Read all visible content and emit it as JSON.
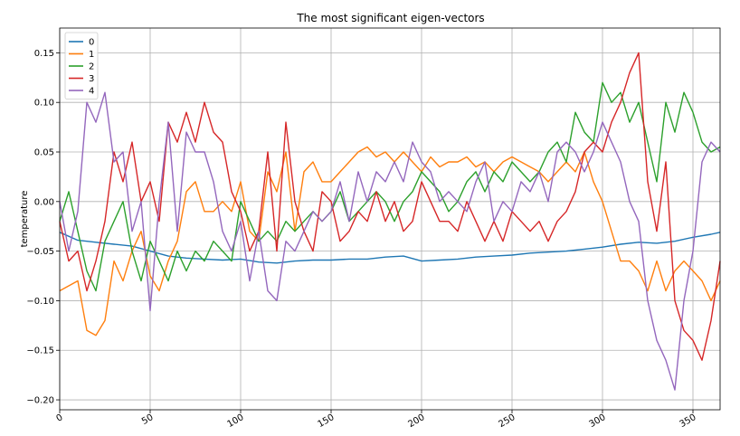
{
  "chart_data": {
    "type": "line",
    "title": "The most significant eigen-vectors",
    "xlabel": "",
    "ylabel": "temperature",
    "xlim": [
      0,
      365
    ],
    "ylim": [
      -0.21,
      0.175
    ],
    "xticks": [
      0,
      50,
      100,
      150,
      200,
      250,
      300,
      350
    ],
    "yticks": [
      -0.2,
      -0.15,
      -0.1,
      -0.05,
      0.0,
      0.05,
      0.1,
      0.15
    ],
    "xtick_labels": [
      "0",
      "50",
      "100",
      "150",
      "200",
      "250",
      "300",
      "350"
    ],
    "ytick_labels": [
      "−0.20",
      "−0.15",
      "−0.10",
      "−0.05",
      "0.00",
      "0.05",
      "0.10",
      "0.15"
    ],
    "grid": true,
    "legend_position": "top-left",
    "series": [
      {
        "name": "0",
        "color": "#1f77b4",
        "x": [
          0,
          10,
          20,
          30,
          40,
          50,
          60,
          70,
          80,
          90,
          100,
          110,
          120,
          130,
          140,
          150,
          160,
          170,
          180,
          190,
          200,
          210,
          220,
          230,
          240,
          250,
          260,
          270,
          280,
          290,
          300,
          310,
          320,
          330,
          340,
          350,
          360,
          365
        ],
        "y": [
          -0.031,
          -0.039,
          -0.041,
          -0.043,
          -0.045,
          -0.05,
          -0.055,
          -0.057,
          -0.058,
          -0.059,
          -0.058,
          -0.061,
          -0.062,
          -0.06,
          -0.059,
          -0.059,
          -0.058,
          -0.058,
          -0.056,
          -0.055,
          -0.06,
          -0.059,
          -0.058,
          -0.056,
          -0.055,
          -0.054,
          -0.052,
          -0.051,
          -0.05,
          -0.048,
          -0.046,
          -0.043,
          -0.041,
          -0.042,
          -0.04,
          -0.036,
          -0.033,
          -0.031
        ]
      },
      {
        "name": "1",
        "color": "#ff7f0e",
        "x": [
          0,
          5,
          10,
          15,
          20,
          25,
          30,
          35,
          40,
          45,
          50,
          55,
          60,
          65,
          70,
          75,
          80,
          85,
          90,
          95,
          100,
          105,
          110,
          115,
          120,
          125,
          130,
          135,
          140,
          145,
          150,
          155,
          160,
          165,
          170,
          175,
          180,
          185,
          190,
          195,
          200,
          205,
          210,
          215,
          220,
          225,
          230,
          235,
          240,
          245,
          250,
          255,
          260,
          265,
          270,
          275,
          280,
          285,
          290,
          295,
          300,
          305,
          310,
          315,
          320,
          325,
          330,
          335,
          340,
          345,
          350,
          355,
          360,
          365
        ],
        "y": [
          -0.09,
          -0.085,
          -0.08,
          -0.13,
          -0.135,
          -0.12,
          -0.06,
          -0.08,
          -0.05,
          -0.03,
          -0.075,
          -0.09,
          -0.06,
          -0.04,
          0.01,
          0.02,
          -0.01,
          -0.01,
          0.0,
          -0.01,
          0.02,
          -0.03,
          -0.04,
          0.03,
          0.01,
          0.05,
          -0.03,
          0.03,
          0.04,
          0.02,
          0.02,
          0.03,
          0.04,
          0.05,
          0.055,
          0.045,
          0.05,
          0.04,
          0.05,
          0.04,
          0.03,
          0.045,
          0.035,
          0.04,
          0.04,
          0.045,
          0.035,
          0.04,
          0.03,
          0.04,
          0.045,
          0.04,
          0.035,
          0.03,
          0.02,
          0.03,
          0.04,
          0.03,
          0.05,
          0.02,
          0.0,
          -0.03,
          -0.06,
          -0.06,
          -0.07,
          -0.09,
          -0.06,
          -0.09,
          -0.07,
          -0.06,
          -0.07,
          -0.08,
          -0.1,
          -0.08
        ]
      },
      {
        "name": "2",
        "color": "#2ca02c",
        "x": [
          0,
          5,
          10,
          15,
          20,
          25,
          30,
          35,
          40,
          45,
          50,
          55,
          60,
          65,
          70,
          75,
          80,
          85,
          90,
          95,
          100,
          105,
          110,
          115,
          120,
          125,
          130,
          135,
          140,
          145,
          150,
          155,
          160,
          165,
          170,
          175,
          180,
          185,
          190,
          195,
          200,
          205,
          210,
          215,
          220,
          225,
          230,
          235,
          240,
          245,
          250,
          255,
          260,
          265,
          270,
          275,
          280,
          285,
          290,
          295,
          300,
          305,
          310,
          315,
          320,
          325,
          330,
          335,
          340,
          345,
          350,
          355,
          360,
          365
        ],
        "y": [
          -0.02,
          0.01,
          -0.03,
          -0.07,
          -0.09,
          -0.04,
          -0.02,
          0.0,
          -0.05,
          -0.08,
          -0.04,
          -0.06,
          -0.08,
          -0.05,
          -0.07,
          -0.05,
          -0.06,
          -0.04,
          -0.05,
          -0.06,
          0.0,
          -0.02,
          -0.04,
          -0.03,
          -0.04,
          -0.02,
          -0.03,
          -0.02,
          -0.01,
          -0.02,
          -0.01,
          0.01,
          -0.02,
          -0.01,
          0.0,
          0.01,
          0.0,
          -0.02,
          0.0,
          0.01,
          0.03,
          0.02,
          0.01,
          -0.01,
          0.0,
          0.02,
          0.03,
          0.01,
          0.03,
          0.02,
          0.04,
          0.03,
          0.02,
          0.03,
          0.05,
          0.06,
          0.04,
          0.09,
          0.07,
          0.06,
          0.12,
          0.1,
          0.11,
          0.08,
          0.1,
          0.06,
          0.02,
          0.1,
          0.07,
          0.11,
          0.09,
          0.06,
          0.05,
          0.055
        ]
      },
      {
        "name": "3",
        "color": "#d62728",
        "x": [
          0,
          5,
          10,
          15,
          20,
          25,
          30,
          35,
          40,
          45,
          50,
          55,
          60,
          65,
          70,
          75,
          80,
          85,
          90,
          95,
          100,
          105,
          110,
          115,
          120,
          125,
          130,
          135,
          140,
          145,
          150,
          155,
          160,
          165,
          170,
          175,
          180,
          185,
          190,
          195,
          200,
          205,
          210,
          215,
          220,
          225,
          230,
          235,
          240,
          245,
          250,
          255,
          260,
          265,
          270,
          275,
          280,
          285,
          290,
          295,
          300,
          305,
          310,
          315,
          320,
          325,
          330,
          335,
          340,
          345,
          350,
          355,
          360,
          365
        ],
        "y": [
          -0.02,
          -0.06,
          -0.05,
          -0.09,
          -0.06,
          -0.02,
          0.05,
          0.02,
          0.06,
          0.0,
          0.02,
          -0.02,
          0.08,
          0.06,
          0.09,
          0.06,
          0.1,
          0.07,
          0.06,
          0.01,
          -0.01,
          -0.05,
          -0.03,
          0.05,
          -0.05,
          0.08,
          0.0,
          -0.03,
          -0.05,
          0.01,
          0.0,
          -0.04,
          -0.03,
          -0.01,
          -0.02,
          0.01,
          -0.02,
          0.0,
          -0.03,
          -0.02,
          0.02,
          0.0,
          -0.02,
          -0.02,
          -0.03,
          0.0,
          -0.02,
          -0.04,
          -0.02,
          -0.04,
          -0.01,
          -0.02,
          -0.03,
          -0.02,
          -0.04,
          -0.02,
          -0.01,
          0.01,
          0.05,
          0.06,
          0.05,
          0.08,
          0.1,
          0.13,
          0.15,
          0.02,
          -0.03,
          0.04,
          -0.1,
          -0.13,
          -0.14,
          -0.16,
          -0.12,
          -0.06
        ]
      },
      {
        "name": "4",
        "color": "#9467bd",
        "x": [
          0,
          5,
          10,
          15,
          20,
          25,
          30,
          35,
          40,
          45,
          50,
          55,
          60,
          65,
          70,
          75,
          80,
          85,
          90,
          95,
          100,
          105,
          110,
          115,
          120,
          125,
          130,
          135,
          140,
          145,
          150,
          155,
          160,
          165,
          170,
          175,
          180,
          185,
          190,
          195,
          200,
          205,
          210,
          215,
          220,
          225,
          230,
          235,
          240,
          245,
          250,
          255,
          260,
          265,
          270,
          275,
          280,
          285,
          290,
          295,
          300,
          305,
          310,
          315,
          320,
          325,
          330,
          335,
          340,
          345,
          350,
          355,
          360,
          365
        ],
        "y": [
          0.0,
          -0.05,
          -0.01,
          0.1,
          0.08,
          0.11,
          0.04,
          0.05,
          -0.03,
          0.0,
          -0.11,
          0.0,
          0.08,
          -0.03,
          0.07,
          0.05,
          0.05,
          0.02,
          -0.03,
          -0.05,
          -0.02,
          -0.08,
          -0.03,
          -0.09,
          -0.1,
          -0.04,
          -0.05,
          -0.03,
          -0.01,
          -0.02,
          -0.01,
          0.02,
          -0.02,
          0.03,
          0.0,
          0.03,
          0.02,
          0.04,
          0.02,
          0.06,
          0.04,
          0.03,
          0.0,
          0.01,
          0.0,
          -0.01,
          0.02,
          0.04,
          -0.02,
          0.0,
          -0.01,
          0.02,
          0.01,
          0.03,
          0.0,
          0.05,
          0.06,
          0.05,
          0.03,
          0.05,
          0.08,
          0.06,
          0.04,
          0.0,
          -0.02,
          -0.1,
          -0.14,
          -0.16,
          -0.19,
          -0.1,
          -0.05,
          0.04,
          0.06,
          0.05
        ]
      }
    ]
  }
}
